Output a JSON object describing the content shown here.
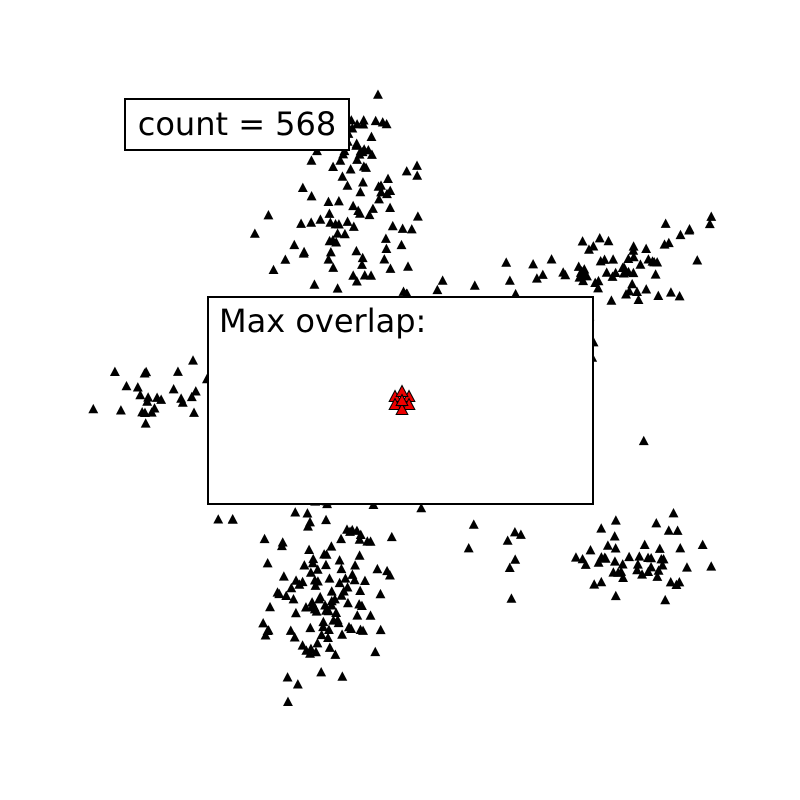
{
  "count_label": "count = 568",
  "max_overlap_label": "Max overlap:",
  "colors": {
    "marker": "#000000",
    "highlight": "#ee0000",
    "frame": "#000000",
    "background": "#ffffff"
  },
  "marker_shape": "triangle"
}
